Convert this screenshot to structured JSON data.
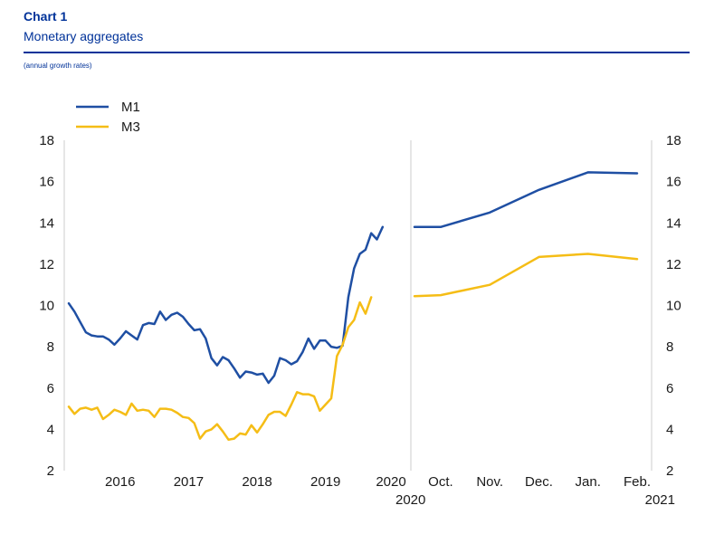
{
  "header": {
    "chart_label": "Chart 1",
    "title": "Monetary aggregates",
    "subtitle": "(annual growth rates)"
  },
  "colors": {
    "M1": "#1f4fa3",
    "M3": "#f5bd16",
    "rule": "#003299",
    "axis": "#cccccc"
  },
  "chart_data": [
    {
      "type": "line",
      "panel": "left",
      "legend": "top-left",
      "ylim": [
        2,
        18
      ],
      "y_ticks": [
        2,
        4,
        6,
        8,
        10,
        12,
        14,
        16,
        18
      ],
      "x_labels": [
        "2016",
        "2017",
        "2018",
        "2019",
        "2020"
      ],
      "x_range": [
        "2015-10",
        "2020-09"
      ],
      "grid": false,
      "series": [
        {
          "name": "M1",
          "x": [
            "2015-10",
            "2015-11",
            "2015-12",
            "2016-01",
            "2016-02",
            "2016-03",
            "2016-04",
            "2016-05",
            "2016-06",
            "2016-07",
            "2016-08",
            "2016-09",
            "2016-10",
            "2016-11",
            "2016-12",
            "2017-01",
            "2017-02",
            "2017-03",
            "2017-04",
            "2017-05",
            "2017-06",
            "2017-07",
            "2017-08",
            "2017-09",
            "2017-10",
            "2017-11",
            "2017-12",
            "2018-01",
            "2018-02",
            "2018-03",
            "2018-04",
            "2018-05",
            "2018-06",
            "2018-07",
            "2018-08",
            "2018-09",
            "2018-10",
            "2018-11",
            "2018-12",
            "2019-01",
            "2019-02",
            "2019-03",
            "2019-04",
            "2019-05",
            "2019-06",
            "2019-07",
            "2019-08",
            "2019-09",
            "2019-10",
            "2019-11",
            "2019-12",
            "2020-01",
            "2020-02",
            "2020-03",
            "2020-04",
            "2020-05",
            "2020-06",
            "2020-07",
            "2020-08",
            "2020-09"
          ],
          "values": [
            10.1,
            9.7,
            9.2,
            8.7,
            8.55,
            8.5,
            8.5,
            8.35,
            8.1,
            8.4,
            8.75,
            8.55,
            8.35,
            9.05,
            9.15,
            9.1,
            9.7,
            9.3,
            9.55,
            9.65,
            9.45,
            9.1,
            8.8,
            8.85,
            8.4,
            7.45,
            7.1,
            7.5,
            7.35,
            6.95,
            6.5,
            6.8,
            6.75,
            6.65,
            6.7,
            6.25,
            6.6,
            7.45,
            7.35,
            7.15,
            7.3,
            7.75,
            8.4,
            7.9,
            8.3,
            8.3,
            8.0,
            7.95,
            8.05,
            10.4,
            11.8,
            12.5,
            12.7,
            13.5,
            13.2,
            13.8,
            null,
            null,
            null,
            null
          ]
        },
        {
          "name": "M3",
          "x": [
            "2015-10",
            "2015-11",
            "2015-12",
            "2016-01",
            "2016-02",
            "2016-03",
            "2016-04",
            "2016-05",
            "2016-06",
            "2016-07",
            "2016-08",
            "2016-09",
            "2016-10",
            "2016-11",
            "2016-12",
            "2017-01",
            "2017-02",
            "2017-03",
            "2017-04",
            "2017-05",
            "2017-06",
            "2017-07",
            "2017-08",
            "2017-09",
            "2017-10",
            "2017-11",
            "2017-12",
            "2018-01",
            "2018-02",
            "2018-03",
            "2018-04",
            "2018-05",
            "2018-06",
            "2018-07",
            "2018-08",
            "2018-09",
            "2018-10",
            "2018-11",
            "2018-12",
            "2019-01",
            "2019-02",
            "2019-03",
            "2019-04",
            "2019-05",
            "2019-06",
            "2019-07",
            "2019-08",
            "2019-09",
            "2019-10",
            "2019-11",
            "2019-12",
            "2020-01",
            "2020-02",
            "2020-03",
            "2020-04",
            "2020-05",
            "2020-06",
            "2020-07",
            "2020-08",
            "2020-09"
          ],
          "values": [
            5.1,
            4.75,
            5.0,
            5.05,
            4.95,
            5.05,
            4.5,
            4.7,
            4.95,
            4.85,
            4.7,
            5.25,
            4.9,
            4.95,
            4.9,
            4.6,
            5.0,
            5.0,
            4.95,
            4.8,
            4.6,
            4.55,
            4.3,
            3.55,
            3.9,
            4.0,
            4.25,
            3.9,
            3.5,
            3.55,
            3.8,
            3.75,
            4.2,
            3.85,
            4.25,
            4.7,
            4.85,
            4.85,
            4.65,
            5.2,
            5.8,
            5.7,
            5.7,
            5.6,
            4.9,
            5.2,
            5.5,
            7.55,
            8.1,
            8.95,
            9.3,
            10.15,
            9.6,
            10.4,
            null,
            null,
            null,
            null,
            null,
            null
          ]
        }
      ]
    },
    {
      "type": "line",
      "panel": "right",
      "ylim": [
        2,
        18
      ],
      "y_ticks": [
        2,
        4,
        6,
        8,
        10,
        12,
        14,
        16,
        18
      ],
      "categories": [
        "Oct.",
        "Nov.",
        "Dec.",
        "Jan.",
        "Feb."
      ],
      "year_labels": [
        "2020",
        "2021"
      ],
      "grid": false,
      "series": [
        {
          "name": "M1",
          "x": [
            "2020-09-15",
            "2020-10",
            "2020-11",
            "2020-12",
            "2021-01",
            "2021-02"
          ],
          "values": [
            13.8,
            13.8,
            14.5,
            15.6,
            16.45,
            16.4
          ]
        },
        {
          "name": "M3",
          "x": [
            "2020-09-15",
            "2020-10",
            "2020-11",
            "2020-12",
            "2021-01",
            "2021-02"
          ],
          "values": [
            10.45,
            10.5,
            11.0,
            12.35,
            12.5,
            12.25
          ]
        }
      ]
    }
  ]
}
